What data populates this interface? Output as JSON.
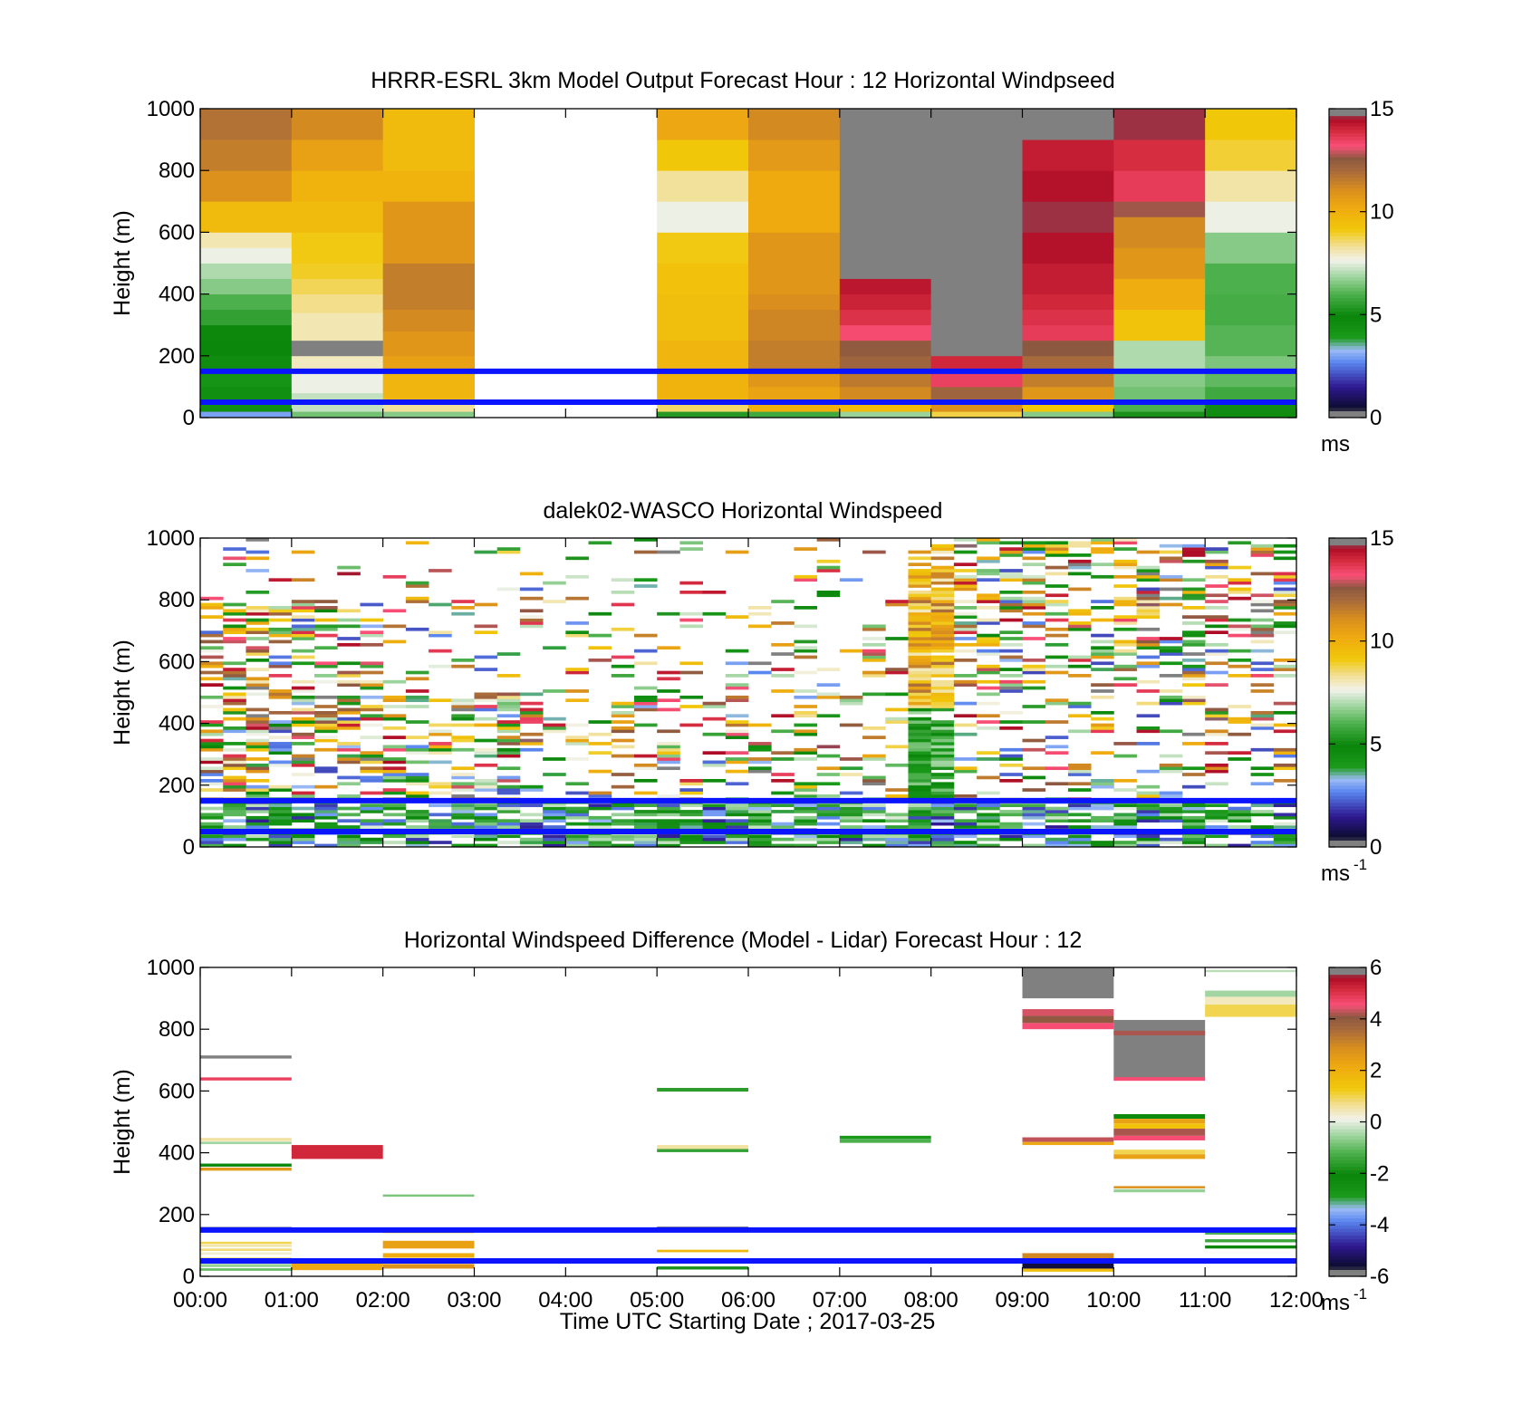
{
  "figure": {
    "xlabel": "Time UTC  Starting Date ; 2017-03-25",
    "x_ticks": [
      "00:00",
      "01:00",
      "02:00",
      "03:00",
      "04:00",
      "05:00",
      "06:00",
      "07:00",
      "08:00",
      "09:00",
      "10:00",
      "11:00",
      "12:00"
    ],
    "reference_lines": {
      "heights_m": [
        50,
        150
      ],
      "color": "#0a14ff"
    }
  },
  "chart_data": [
    {
      "type": "heatmap",
      "title": "HRRR-ESRL 3km Model Output   Forecast Hour : 12 Horizontal Windpseed",
      "ylabel": "Height (m)",
      "ylim": [
        0,
        1000
      ],
      "y_ticks": [
        "0",
        "200",
        "400",
        "600",
        "800",
        "1000"
      ],
      "colorbar": {
        "ticks": [
          "0",
          "5",
          "10",
          "15"
        ],
        "range": [
          0,
          15
        ],
        "unit": "ms",
        "unit_sup": ""
      },
      "columns": [
        {
          "t0": 0,
          "t1": 1,
          "cells": [
            [
              0,
              20,
              3
            ],
            [
              20,
              100,
              4.5
            ],
            [
              100,
              150,
              4.2
            ],
            [
              150,
              200,
              4.6
            ],
            [
              200,
              250,
              4.9
            ],
            [
              250,
              300,
              5
            ],
            [
              300,
              350,
              5.6
            ],
            [
              350,
              400,
              6
            ],
            [
              400,
              450,
              6.6
            ],
            [
              450,
              500,
              7
            ],
            [
              500,
              550,
              7.6
            ],
            [
              550,
              600,
              8.1
            ],
            [
              600,
              700,
              9.6
            ],
            [
              700,
              800,
              11
            ],
            [
              800,
              900,
              11.5
            ],
            [
              900,
              1000,
              11.8
            ]
          ]
        },
        {
          "t0": 1,
          "t1": 2,
          "cells": [
            [
              0,
              20,
              6.4
            ],
            [
              20,
              80,
              7.2
            ],
            [
              80,
              150,
              7.6
            ],
            [
              150,
              200,
              8
            ],
            [
              200,
              250,
              14.8
            ],
            [
              250,
              340,
              8.1
            ],
            [
              340,
              400,
              8.4
            ],
            [
              400,
              450,
              8.7
            ],
            [
              450,
              500,
              9
            ],
            [
              500,
              600,
              9.1
            ],
            [
              600,
              700,
              9.6
            ],
            [
              700,
              800,
              9.9
            ],
            [
              800,
              900,
              10.5
            ],
            [
              900,
              1000,
              11.2
            ]
          ]
        },
        {
          "t0": 2,
          "t1": 3,
          "cells": [
            [
              0,
              20,
              6.6
            ],
            [
              20,
              60,
              8.3
            ],
            [
              60,
              150,
              9.8
            ],
            [
              150,
              200,
              10.5
            ],
            [
              200,
              280,
              10.8
            ],
            [
              280,
              350,
              11.2
            ],
            [
              350,
              500,
              11.5
            ],
            [
              500,
              700,
              10.8
            ],
            [
              700,
              800,
              9.9
            ],
            [
              800,
              1000,
              9.6
            ]
          ]
        },
        {
          "t0": 3,
          "t1": 5,
          "cells": []
        },
        {
          "t0": 5,
          "t1": 6,
          "cells": [
            [
              0,
              20,
              5.4
            ],
            [
              20,
              60,
              8.6
            ],
            [
              60,
              150,
              9.9
            ],
            [
              150,
              250,
              9.8
            ],
            [
              250,
              400,
              9.5
            ],
            [
              400,
              500,
              9.4
            ],
            [
              500,
              600,
              9.1
            ],
            [
              600,
              700,
              7.6
            ],
            [
              700,
              800,
              8.3
            ],
            [
              800,
              900,
              9.2
            ],
            [
              900,
              1000,
              10.3
            ]
          ]
        },
        {
          "t0": 6,
          "t1": 7,
          "cells": [
            [
              0,
              20,
              5.8
            ],
            [
              20,
              50,
              10
            ],
            [
              50,
              100,
              10.4
            ],
            [
              100,
              150,
              10.8
            ],
            [
              150,
              250,
              11.5
            ],
            [
              250,
              350,
              11.3
            ],
            [
              350,
              400,
              11.1
            ],
            [
              400,
              600,
              10.8
            ],
            [
              600,
              800,
              10.2
            ],
            [
              800,
              900,
              10.7
            ],
            [
              900,
              1000,
              11.2
            ]
          ]
        },
        {
          "t0": 7,
          "t1": 8,
          "cells": [
            [
              0,
              20,
              6.8
            ],
            [
              20,
              60,
              9.6
            ],
            [
              60,
              100,
              11.2
            ],
            [
              100,
              150,
              11.6
            ],
            [
              150,
              200,
              12.2
            ],
            [
              200,
              250,
              12.5
            ],
            [
              250,
              300,
              13.3
            ],
            [
              300,
              350,
              13.8
            ],
            [
              350,
              400,
              14.1
            ],
            [
              400,
              450,
              14.3
            ],
            [
              450,
              1000,
              15.5
            ]
          ]
        },
        {
          "t0": 8,
          "t1": 9,
          "cells": [
            [
              0,
              20,
              8.8
            ],
            [
              20,
              60,
              11
            ],
            [
              60,
              100,
              12.2
            ],
            [
              100,
              150,
              13.5
            ],
            [
              150,
              200,
              14
            ],
            [
              200,
              1000,
              15.5
            ]
          ]
        },
        {
          "t0": 9,
          "t1": 10,
          "cells": [
            [
              0,
              20,
              6.6
            ],
            [
              20,
              60,
              9.2
            ],
            [
              60,
              100,
              10.8
            ],
            [
              100,
              150,
              11.5
            ],
            [
              150,
              200,
              12
            ],
            [
              200,
              250,
              12.6
            ],
            [
              250,
              300,
              13.6
            ],
            [
              300,
              350,
              13.8
            ],
            [
              350,
              400,
              14
            ],
            [
              400,
              500,
              14.2
            ],
            [
              500,
              600,
              14.4
            ],
            [
              600,
              700,
              14.6
            ],
            [
              700,
              800,
              14.4
            ],
            [
              800,
              900,
              14.2
            ],
            [
              900,
              1000,
              15.5
            ]
          ]
        },
        {
          "t0": 10,
          "t1": 11,
          "cells": [
            [
              0,
              20,
              5.2
            ],
            [
              20,
              60,
              6
            ],
            [
              60,
              100,
              6.4
            ],
            [
              100,
              150,
              6.6
            ],
            [
              150,
              250,
              7
            ],
            [
              250,
              350,
              9.3
            ],
            [
              350,
              450,
              10.1
            ],
            [
              450,
              550,
              10.8
            ],
            [
              550,
              650,
              11.2
            ],
            [
              650,
              700,
              12.7
            ],
            [
              700,
              800,
              13.6
            ],
            [
              800,
              900,
              13.9
            ],
            [
              900,
              1000,
              14.6
            ]
          ]
        },
        {
          "t0": 11,
          "t1": 12,
          "cells": [
            [
              0,
              20,
              4.6
            ],
            [
              20,
              50,
              5.1
            ],
            [
              50,
              100,
              5.8
            ],
            [
              100,
              150,
              6.2
            ],
            [
              150,
              200,
              6.5
            ],
            [
              200,
              300,
              6.1
            ],
            [
              300,
              400,
              5.9
            ],
            [
              400,
              500,
              6
            ],
            [
              500,
              600,
              6.6
            ],
            [
              600,
              700,
              7.6
            ],
            [
              700,
              800,
              8.2
            ],
            [
              800,
              900,
              8.9
            ],
            [
              900,
              1000,
              9.2
            ]
          ]
        }
      ]
    },
    {
      "type": "heatmap",
      "title": "dalek02-WASCO  Horizontal Windspeed",
      "ylabel": "Height (m)",
      "ylim": [
        0,
        1000
      ],
      "y_ticks": [
        "0",
        "200",
        "400",
        "600",
        "800",
        "1000"
      ],
      "colorbar": {
        "ticks": [
          "0",
          "5",
          "10",
          "15"
        ],
        "range": [
          0,
          15
        ],
        "unit": "ms",
        "unit_sup": "-1"
      },
      "noisy_profile": {
        "time_bins": 48,
        "height_bins": 100,
        "time_range": [
          0,
          12
        ],
        "height_range": [
          0,
          1000
        ]
      }
    },
    {
      "type": "heatmap",
      "title": "Horizontal Windspeed Difference (Model - Lidar) Forecast Hour : 12",
      "ylabel": "Height (m)",
      "ylim": [
        0,
        1000
      ],
      "y_ticks": [
        "0",
        "200",
        "400",
        "600",
        "800",
        "1000"
      ],
      "colorbar": {
        "ticks": [
          "-6",
          "-4",
          "-2",
          "0",
          "2",
          "4",
          "6"
        ],
        "range": [
          -6,
          6
        ],
        "unit": "ms",
        "unit_sup": "-1"
      },
      "segments": [
        [
          0,
          1,
          705,
          715,
          -5.8
        ],
        [
          0,
          1,
          634,
          644,
          4.8
        ],
        [
          0,
          1,
          438,
          448,
          0.6
        ],
        [
          0,
          1,
          428,
          436,
          -0.5
        ],
        [
          0,
          1,
          355,
          365,
          -2.2
        ],
        [
          0,
          1,
          342,
          352,
          2.6
        ],
        [
          0,
          1,
          150,
          160,
          -5.8
        ],
        [
          0,
          1,
          105,
          112,
          1
        ],
        [
          0,
          1,
          95,
          103,
          0.5
        ],
        [
          0,
          1,
          82,
          90,
          0.8
        ],
        [
          0,
          1,
          70,
          78,
          0.3
        ],
        [
          0,
          1,
          55,
          62,
          0.7
        ],
        [
          0,
          1,
          30,
          40,
          -0.6
        ],
        [
          0,
          1,
          18,
          26,
          -1
        ],
        [
          1,
          2,
          405,
          415,
          -5.8
        ],
        [
          1,
          2,
          380,
          425,
          5.2
        ],
        [
          1,
          2,
          20,
          45,
          2.2
        ],
        [
          2,
          3,
          258,
          265,
          -0.8
        ],
        [
          2,
          3,
          140,
          150,
          1.5
        ],
        [
          2,
          3,
          90,
          115,
          2.4
        ],
        [
          2,
          3,
          60,
          75,
          2.1
        ],
        [
          2,
          3,
          25,
          40,
          2.8
        ],
        [
          5,
          6,
          598,
          610,
          -1.6
        ],
        [
          5,
          6,
          412,
          425,
          0.6
        ],
        [
          5,
          6,
          402,
          412,
          -1.5
        ],
        [
          5,
          6,
          150,
          160,
          -5.5
        ],
        [
          5,
          6,
          78,
          86,
          1.8
        ],
        [
          5,
          6,
          22,
          32,
          -1.8
        ],
        [
          7,
          8,
          445,
          455,
          -2.8
        ],
        [
          7,
          8,
          432,
          445,
          -1.2
        ],
        [
          9,
          10,
          900,
          1000,
          5.8
        ],
        [
          9,
          10,
          843,
          865,
          4.4
        ],
        [
          9,
          10,
          820,
          843,
          4.1
        ],
        [
          9,
          10,
          800,
          820,
          4.6
        ],
        [
          9,
          10,
          435,
          450,
          4.3
        ],
        [
          9,
          10,
          425,
          435,
          2.2
        ],
        [
          9,
          10,
          50,
          75,
          3
        ],
        [
          9,
          10,
          25,
          50,
          -5.5
        ],
        [
          9,
          10,
          15,
          25,
          1.6
        ],
        [
          10,
          11,
          640,
          830,
          5.8
        ],
        [
          10,
          11,
          633,
          645,
          4.6
        ],
        [
          10,
          11,
          780,
          795,
          4.2
        ],
        [
          10,
          11,
          510,
          525,
          -2.2
        ],
        [
          10,
          11,
          495,
          510,
          2.4
        ],
        [
          10,
          11,
          478,
          495,
          1.5
        ],
        [
          10,
          11,
          455,
          478,
          4.2
        ],
        [
          10,
          11,
          440,
          455,
          4.6
        ],
        [
          10,
          11,
          395,
          410,
          1
        ],
        [
          10,
          11,
          380,
          395,
          2.4
        ],
        [
          10,
          11,
          285,
          292,
          2.8
        ],
        [
          10,
          11,
          272,
          282,
          -0.6
        ],
        [
          11,
          12,
          840,
          880,
          1
        ],
        [
          11,
          12,
          880,
          905,
          0.4
        ],
        [
          11,
          12,
          905,
          925,
          -0.5
        ],
        [
          11,
          12,
          985,
          992,
          -0.3
        ],
        [
          11,
          12,
          135,
          145,
          -1.2
        ],
        [
          11,
          12,
          110,
          120,
          -1.4
        ],
        [
          11,
          12,
          90,
          100,
          -2.1
        ]
      ]
    }
  ]
}
